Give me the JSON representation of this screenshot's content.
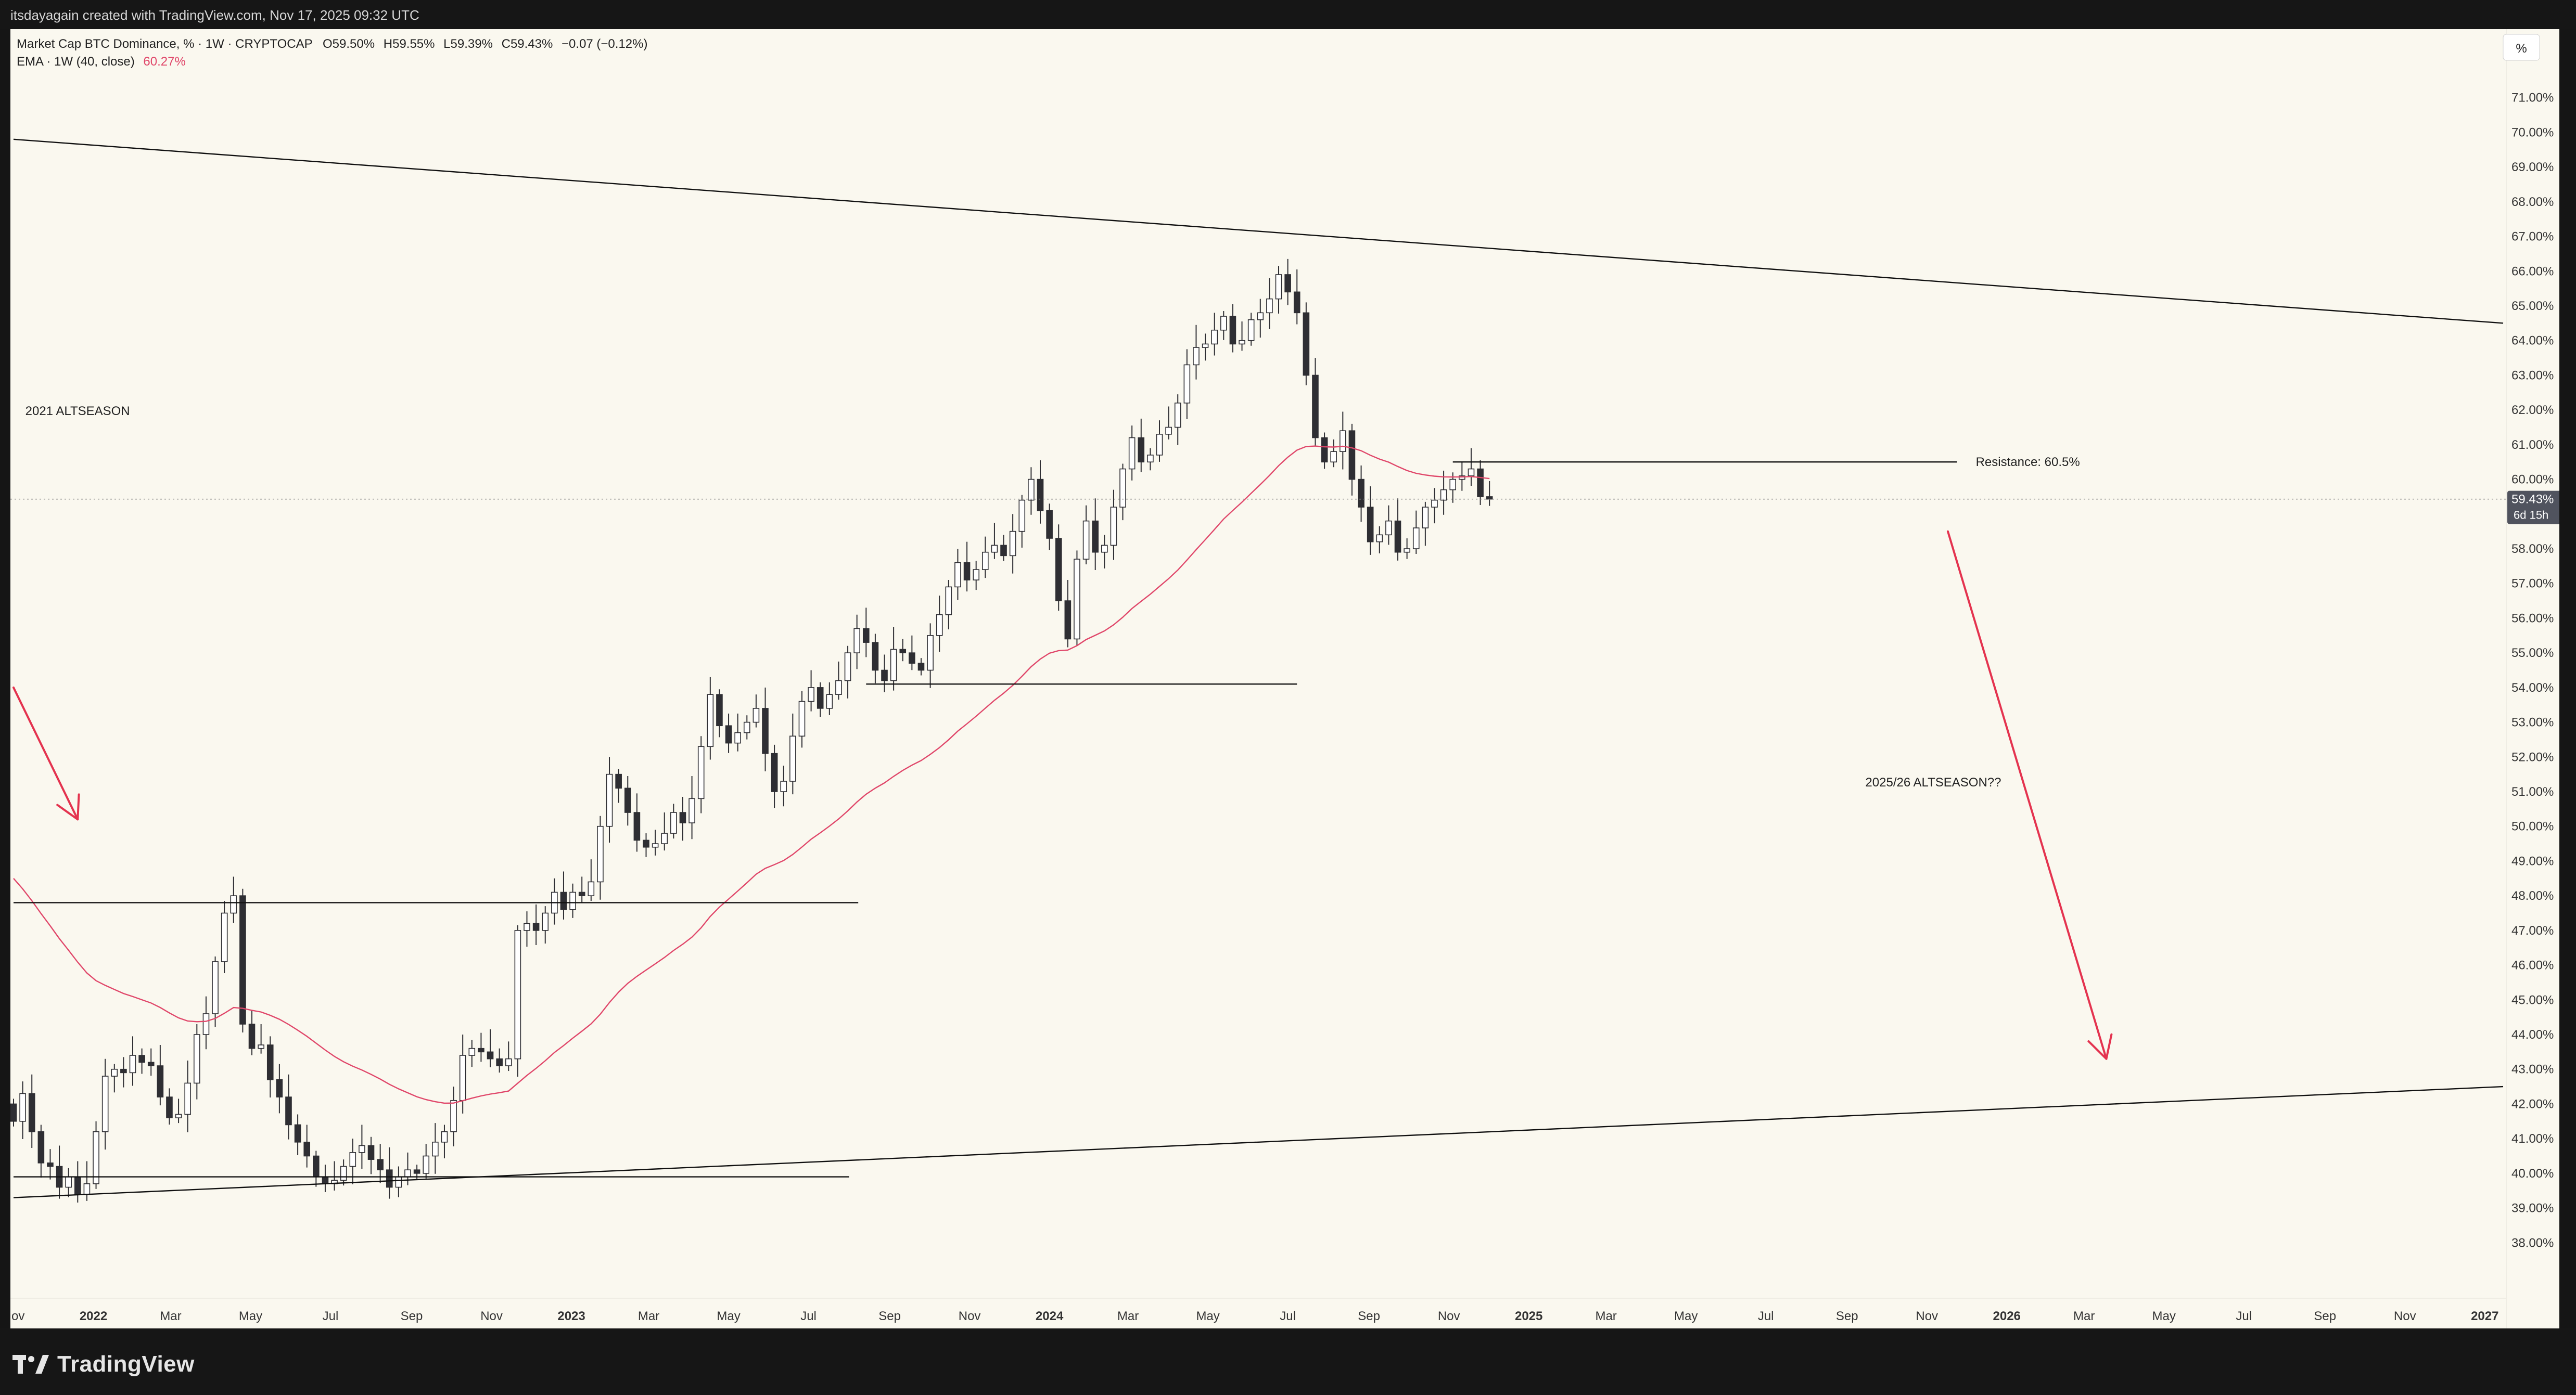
{
  "header": {
    "attribution": "itsdayagain created with TradingView.com, Nov 17, 2025 09:32 UTC"
  },
  "legend": {
    "symbol_line": "Market Cap BTC Dominance, % · 1W · CRYPTOCAP",
    "o_label": "O",
    "o_value": "59.50%",
    "h_label": "H",
    "h_value": "59.55%",
    "l_label": "L",
    "l_value": "59.39%",
    "c_label": "C",
    "c_value": "59.43%",
    "change": "−0.07 (−0.12%)",
    "ema_label": "EMA · 1W (40, close)",
    "ema_value": "60.27%"
  },
  "price_scale": {
    "unit_button": "%",
    "current_price": "59.43%",
    "countdown": "6d 15h"
  },
  "annotations": {
    "left_text": "2021 ALTSEASON",
    "right_text": "2025/26 ALTSEASON??",
    "resistance_text": "Resistance: 60.5%"
  },
  "footer": {
    "brand": "TradingView"
  },
  "colors": {
    "background": "#faf8ef",
    "candle_up_fill": "#ffffff",
    "candle_down_fill": "#2e2e33",
    "candle_outline": "#2e2e33",
    "ema_line": "#e0476a",
    "arrow": "#e4334f",
    "trendline": "#111111",
    "price_label_bg": "#50535e"
  },
  "chart_data": {
    "type": "candlestick",
    "title": "Market Cap BTC Dominance, % · 1W · CRYPTOCAP",
    "y_unit": "%",
    "y_range": [
      37.0,
      72.0
    ],
    "y_ticks": [
      38,
      39,
      40,
      41,
      42,
      43,
      44,
      45,
      46,
      47,
      48,
      49,
      50,
      51,
      52,
      53,
      54,
      55,
      56,
      57,
      58,
      59,
      60,
      61,
      62,
      63,
      64,
      65,
      66,
      67,
      68,
      69,
      70,
      71
    ],
    "x_range": [
      "2021-11-01",
      "2027-01-15"
    ],
    "x_ticks": [
      {
        "label": "Nov",
        "date": "2021-11-01"
      },
      {
        "label": "2022",
        "date": "2022-01-01"
      },
      {
        "label": "Mar",
        "date": "2022-03-01"
      },
      {
        "label": "May",
        "date": "2022-05-01"
      },
      {
        "label": "Jul",
        "date": "2022-07-01"
      },
      {
        "label": "Sep",
        "date": "2022-09-01"
      },
      {
        "label": "Nov",
        "date": "2022-11-01"
      },
      {
        "label": "2023",
        "date": "2023-01-01"
      },
      {
        "label": "Mar",
        "date": "2023-03-01"
      },
      {
        "label": "May",
        "date": "2023-05-01"
      },
      {
        "label": "Jul",
        "date": "2023-07-01"
      },
      {
        "label": "Sep",
        "date": "2023-09-01"
      },
      {
        "label": "Nov",
        "date": "2023-11-01"
      },
      {
        "label": "2024",
        "date": "2024-01-01"
      },
      {
        "label": "Mar",
        "date": "2024-03-01"
      },
      {
        "label": "May",
        "date": "2024-05-01"
      },
      {
        "label": "Jul",
        "date": "2024-07-01"
      },
      {
        "label": "Sep",
        "date": "2024-09-01"
      },
      {
        "label": "Nov",
        "date": "2024-11-01"
      },
      {
        "label": "2025",
        "date": "2025-01-01"
      },
      {
        "label": "Mar",
        "date": "2025-03-01"
      },
      {
        "label": "May",
        "date": "2025-05-01"
      },
      {
        "label": "Jul",
        "date": "2025-07-01"
      },
      {
        "label": "Sep",
        "date": "2025-09-01"
      },
      {
        "label": "Nov",
        "date": "2025-11-01"
      },
      {
        "label": "2026",
        "date": "2026-01-01"
      },
      {
        "label": "Mar",
        "date": "2026-03-01"
      },
      {
        "label": "May",
        "date": "2026-05-01"
      },
      {
        "label": "Jul",
        "date": "2026-07-01"
      },
      {
        "label": "Sep",
        "date": "2026-09-01"
      },
      {
        "label": "Nov",
        "date": "2026-11-01"
      },
      {
        "label": "2027",
        "date": "2027-01-01"
      }
    ],
    "close_series": {
      "first_week": "2021-11-01",
      "interval": "1W",
      "start_open": 42.0,
      "values": [
        41.5,
        42.3,
        41.2,
        40.3,
        40.2,
        39.6,
        39.9,
        39.4,
        39.7,
        41.2,
        42.8,
        43.0,
        42.9,
        43.4,
        43.2,
        43.1,
        42.2,
        41.6,
        41.7,
        42.6,
        44.0,
        44.6,
        46.1,
        47.5,
        48.0,
        44.3,
        43.6,
        43.7,
        42.7,
        42.2,
        41.4,
        40.9,
        40.5,
        39.9,
        39.7,
        39.8,
        40.2,
        40.6,
        40.8,
        40.4,
        40.1,
        39.6,
        39.9,
        40.1,
        40.0,
        40.5,
        40.9,
        41.2,
        42.1,
        43.4,
        43.6,
        43.5,
        43.3,
        43.1,
        43.3,
        47.0,
        47.2,
        47.0,
        47.5,
        48.1,
        47.6,
        48.1,
        48.0,
        48.4,
        50.0,
        51.5,
        51.1,
        50.4,
        49.6,
        49.4,
        49.5,
        49.8,
        50.4,
        50.1,
        50.8,
        52.3,
        53.8,
        52.9,
        52.4,
        52.7,
        53.0,
        53.4,
        52.1,
        51.0,
        51.3,
        52.6,
        53.6,
        54.0,
        53.4,
        53.8,
        54.2,
        55.0,
        55.7,
        55.3,
        54.5,
        54.2,
        55.1,
        55.0,
        54.7,
        54.5,
        55.5,
        56.1,
        56.9,
        57.6,
        57.1,
        57.4,
        57.9,
        58.1,
        57.8,
        58.5,
        59.4,
        60.0,
        59.1,
        58.3,
        56.5,
        55.4,
        57.7,
        58.8,
        57.9,
        58.1,
        59.2,
        60.3,
        61.2,
        60.5,
        60.7,
        61.3,
        61.5,
        62.2,
        63.3,
        63.8,
        63.9,
        64.3,
        64.7,
        63.9,
        64.0,
        64.6,
        64.8,
        65.2,
        65.9,
        65.4,
        64.8,
        63.0,
        61.2,
        60.5,
        60.8,
        61.4,
        60.0,
        59.2,
        58.2,
        58.4,
        58.8,
        57.9,
        58.0,
        58.6,
        59.2,
        59.4,
        59.7,
        60.0,
        60.1,
        60.3,
        59.5,
        59.43
      ]
    },
    "ema": {
      "label": "EMA · 1W (40, close)",
      "last_value": 60.27
    },
    "trendlines": [
      {
        "from": {
          "date": "2021-11-01",
          "value": 69.8
        },
        "to": {
          "date": "2027-01-15",
          "value": 64.5
        }
      },
      {
        "from": {
          "date": "2021-11-01",
          "value": 39.3
        },
        "to": {
          "date": "2027-01-15",
          "value": 42.5
        }
      }
    ],
    "horizontal_lines": [
      {
        "value": 39.9,
        "from": "2021-11-01",
        "to": "2023-08-01"
      },
      {
        "value": 47.8,
        "from": "2021-11-01",
        "to": "2023-08-08"
      },
      {
        "value": 54.1,
        "from": "2023-08-14",
        "to": "2024-07-08"
      },
      {
        "value": 60.5,
        "from": "2024-11-04",
        "to": "2025-11-24",
        "label": "Resistance: 60.5%"
      }
    ],
    "arrows": [
      {
        "from": {
          "date": "2021-11-01",
          "value": 54.0
        },
        "to": {
          "date": "2021-12-20",
          "value": 50.2
        }
      },
      {
        "from": {
          "date": "2025-11-17",
          "value": 58.5
        },
        "to": {
          "date": "2026-03-18",
          "value": 43.3
        }
      }
    ],
    "text_annotations": [
      {
        "text": "2021 ALTSEASON",
        "date": "2021-11-10",
        "value": 62.0
      },
      {
        "text": "2025/26 ALTSEASON??",
        "date": "2025-09-15",
        "value": 51.3
      }
    ]
  }
}
